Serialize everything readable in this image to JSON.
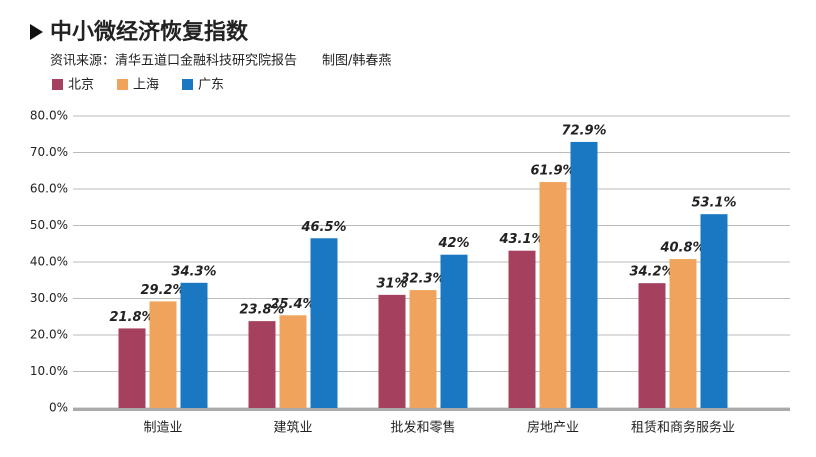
{
  "chart_data": {
    "type": "bar",
    "title": "中小微经济恢复指数",
    "source": "资讯来源：清华五道口金融科技研究院报告",
    "credit": "制图/韩春燕",
    "categories": [
      "制造业",
      "建筑业",
      "批发和零售",
      "房地产业",
      "租赁和商务服务业"
    ],
    "series": [
      {
        "name": "北京",
        "color": "#a5405e",
        "values": [
          21.8,
          23.8,
          31,
          43.1,
          34.2
        ],
        "value_labels": [
          "21.8%",
          "23.8%",
          "31%",
          "43.1%",
          "34.2%"
        ]
      },
      {
        "name": "上海",
        "color": "#f0a35c",
        "values": [
          29.2,
          25.4,
          32.3,
          61.9,
          40.8
        ],
        "value_labels": [
          "29.2%",
          "25.4%",
          "32.3%",
          "61.9%",
          "40.8%"
        ]
      },
      {
        "name": "广东",
        "color": "#1a78c2",
        "values": [
          34.3,
          46.5,
          42,
          72.9,
          53.1
        ],
        "value_labels": [
          "34.3%",
          "46.5%",
          "42%",
          "72.9%",
          "53.1%"
        ]
      }
    ],
    "ylim": [
      0,
      80
    ],
    "yticks": [
      {
        "value": 0,
        "label": "0%"
      },
      {
        "value": 10,
        "label": "10.0%"
      },
      {
        "value": 20,
        "label": "20.0%"
      },
      {
        "value": 30,
        "label": "30.0%"
      },
      {
        "value": 40,
        "label": "40.0%"
      },
      {
        "value": 50,
        "label": "50.0%"
      },
      {
        "value": 60,
        "label": "60.0%"
      },
      {
        "value": 70,
        "label": "70.0%"
      },
      {
        "value": 80,
        "label": "80.0%"
      }
    ],
    "grid": true,
    "legend": "top-left"
  }
}
